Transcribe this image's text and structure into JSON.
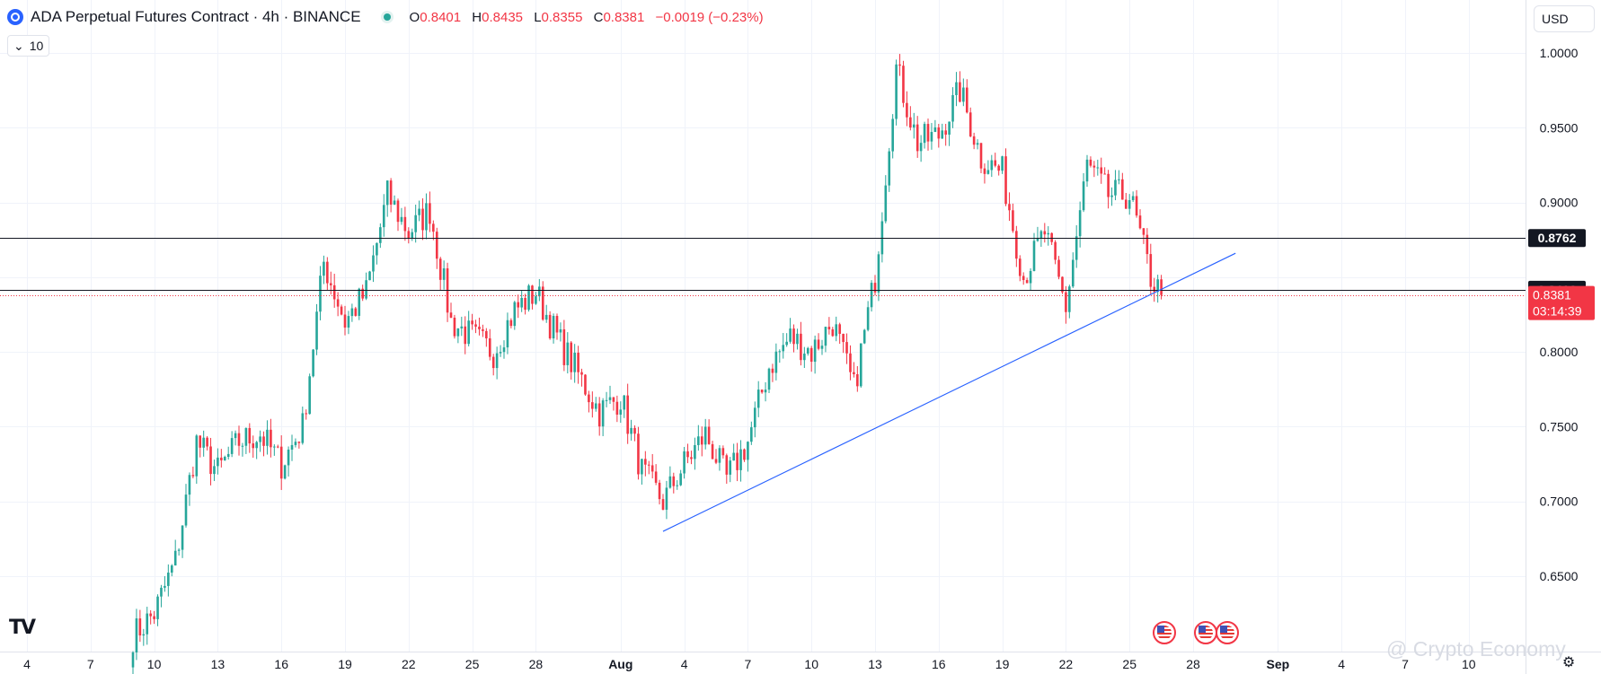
{
  "header": {
    "title": "ADA Perpetual Futures Contract · 4h · BINANCE",
    "o_label": "O",
    "o_value": "0.8401",
    "h_label": "H",
    "h_value": "0.8435",
    "l_label": "L",
    "l_value": "0.8355",
    "c_label": "C",
    "c_value": "0.8381",
    "change": "−0.0019 (−0.23%)"
  },
  "volume_toggle": {
    "value": "10"
  },
  "currency": {
    "label": "USD"
  },
  "watermark": "@ Crypto Economy",
  "colors": {
    "up": "#26a69a",
    "down": "#f23645",
    "trendline": "#2962ff",
    "hline": "#131722"
  },
  "chart_data": {
    "type": "candlestick",
    "interval": "4h",
    "y_axis": {
      "range": [
        0.61,
        1.02
      ],
      "ticks": [
        "1.0000",
        "0.9500",
        "0.9000",
        "0.8000",
        "0.7500",
        "0.7000",
        "0.6500"
      ],
      "tick_values": [
        1.0,
        0.95,
        0.9,
        0.8,
        0.75,
        0.7,
        0.65
      ]
    },
    "x_axis": {
      "labels": [
        "4",
        "7",
        "10",
        "13",
        "16",
        "19",
        "22",
        "25",
        "28",
        "Aug",
        "4",
        "7",
        "10",
        "13",
        "16",
        "19",
        "22",
        "25",
        "28",
        "Sep",
        "4",
        "7",
        "10"
      ],
      "dates": [
        "2024-07-04",
        "2024-07-07",
        "2024-07-10",
        "2024-07-13",
        "2024-07-16",
        "2024-07-19",
        "2024-07-22",
        "2024-07-25",
        "2024-07-28",
        "2024-08-01",
        "2024-08-04",
        "2024-08-07",
        "2024-08-10",
        "2024-08-13",
        "2024-08-16",
        "2024-08-19",
        "2024-08-22",
        "2024-08-25",
        "2024-08-28",
        "2024-09-01",
        "2024-09-04",
        "2024-09-07",
        "2024-09-10"
      ]
    },
    "anchors": [
      {
        "date": "2024-07-09",
        "price": 0.61
      },
      {
        "date": "2024-07-10",
        "price": 0.625
      },
      {
        "date": "2024-07-11",
        "price": 0.66
      },
      {
        "date": "2024-07-12",
        "price": 0.74
      },
      {
        "date": "2024-07-13",
        "price": 0.72
      },
      {
        "date": "2024-07-14",
        "price": 0.74
      },
      {
        "date": "2024-07-15",
        "price": 0.745
      },
      {
        "date": "2024-07-16",
        "price": 0.725
      },
      {
        "date": "2024-07-17",
        "price": 0.75
      },
      {
        "date": "2024-07-18",
        "price": 0.86
      },
      {
        "date": "2024-07-19",
        "price": 0.82
      },
      {
        "date": "2024-07-20",
        "price": 0.84
      },
      {
        "date": "2024-07-21",
        "price": 0.905
      },
      {
        "date": "2024-07-22",
        "price": 0.88
      },
      {
        "date": "2024-07-23",
        "price": 0.895
      },
      {
        "date": "2024-07-24",
        "price": 0.82
      },
      {
        "date": "2024-07-25",
        "price": 0.81
      },
      {
        "date": "2024-07-26",
        "price": 0.8
      },
      {
        "date": "2024-07-27",
        "price": 0.828
      },
      {
        "date": "2024-07-28",
        "price": 0.84
      },
      {
        "date": "2024-07-29",
        "price": 0.81
      },
      {
        "date": "2024-07-30",
        "price": 0.785
      },
      {
        "date": "2024-07-31",
        "price": 0.76
      },
      {
        "date": "2024-08-01",
        "price": 0.77
      },
      {
        "date": "2024-08-02",
        "price": 0.72
      },
      {
        "date": "2024-08-03",
        "price": 0.7
      },
      {
        "date": "2024-08-04",
        "price": 0.725
      },
      {
        "date": "2024-08-05",
        "price": 0.745
      },
      {
        "date": "2024-08-06",
        "price": 0.715
      },
      {
        "date": "2024-08-07",
        "price": 0.74
      },
      {
        "date": "2024-08-08",
        "price": 0.79
      },
      {
        "date": "2024-08-09",
        "price": 0.81
      },
      {
        "date": "2024-08-10",
        "price": 0.8
      },
      {
        "date": "2024-08-11",
        "price": 0.82
      },
      {
        "date": "2024-08-12",
        "price": 0.775
      },
      {
        "date": "2024-08-13",
        "price": 0.85
      },
      {
        "date": "2024-08-14",
        "price": 0.99
      },
      {
        "date": "2024-08-15",
        "price": 0.94
      },
      {
        "date": "2024-08-16",
        "price": 0.945
      },
      {
        "date": "2024-08-17",
        "price": 0.975
      },
      {
        "date": "2024-08-18",
        "price": 0.93
      },
      {
        "date": "2024-08-19",
        "price": 0.92
      },
      {
        "date": "2024-08-20",
        "price": 0.85
      },
      {
        "date": "2024-08-21",
        "price": 0.88
      },
      {
        "date": "2024-08-22",
        "price": 0.83
      },
      {
        "date": "2024-08-23",
        "price": 0.925
      },
      {
        "date": "2024-08-24",
        "price": 0.905
      },
      {
        "date": "2024-08-25",
        "price": 0.905
      },
      {
        "date": "2024-08-26",
        "price": 0.85
      },
      {
        "date": "2024-08-26T12:00",
        "price": 0.838
      }
    ],
    "horizontal_lines": [
      {
        "price": 0.8762,
        "label": "0.8762"
      },
      {
        "price": 0.8416,
        "label": "0.8416"
      }
    ],
    "current_price": {
      "price": 0.8381,
      "label": "0.8381",
      "countdown": "03:14:39"
    },
    "trendline": {
      "from": {
        "date": "2024-08-03",
        "price": 0.68
      },
      "to": {
        "date": "2024-08-30",
        "price": 0.866
      }
    },
    "grid": true
  }
}
